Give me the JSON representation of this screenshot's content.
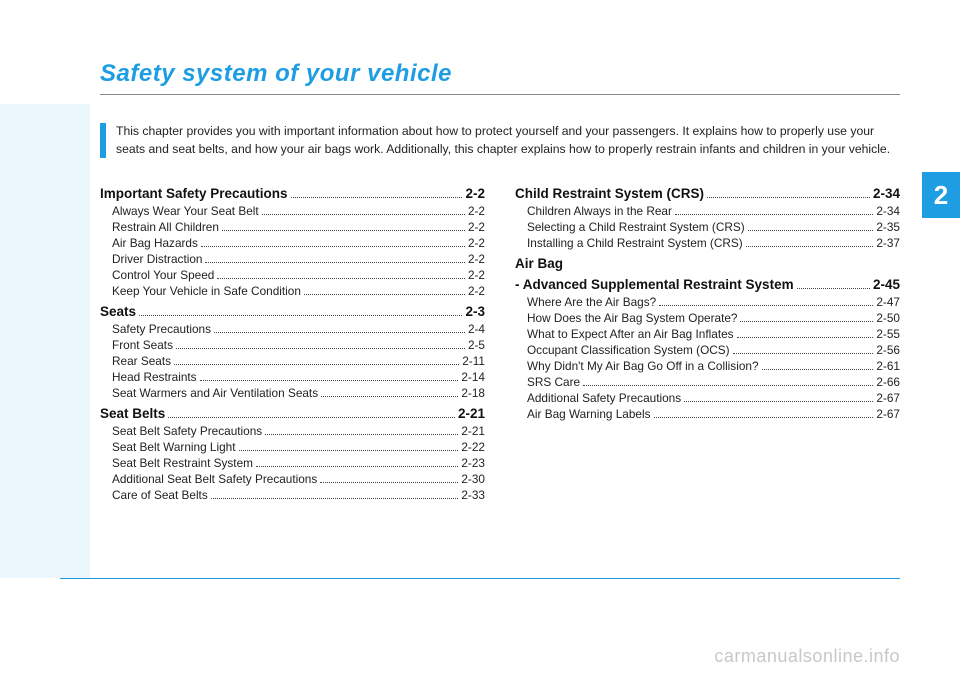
{
  "title": "Safety system of your vehicle",
  "chapter_number": "2",
  "intro": "This chapter provides you with important information about how to protect yourself and your passengers. It explains how to properly use your seats and seat belts, and how your air bags work. Additionally, this chapter explains how to properly restrain infants and children in your vehicle.",
  "watermark": "carmanualsonline.info",
  "colors": {
    "accent": "#1e9de3",
    "left_band": "#eaf5fc",
    "text": "#222222",
    "watermark": "#c8c8c8",
    "divider": "#888888"
  },
  "typography": {
    "title_fontsize": 24,
    "section_fontsize": 13.5,
    "sub_fontsize": 11.8,
    "intro_fontsize": 12.2,
    "chapter_fontsize": 26,
    "watermark_fontsize": 18
  },
  "left_column": [
    {
      "type": "section",
      "label": "Important Safety Precautions",
      "page": "2-2"
    },
    {
      "type": "sub",
      "label": "Always Wear Your Seat Belt",
      "page": "2-2"
    },
    {
      "type": "sub",
      "label": "Restrain All Children",
      "page": "2-2"
    },
    {
      "type": "sub",
      "label": "Air Bag Hazards",
      "page": "2-2"
    },
    {
      "type": "sub",
      "label": "Driver Distraction",
      "page": "2-2"
    },
    {
      "type": "sub",
      "label": "Control Your Speed",
      "page": "2-2"
    },
    {
      "type": "sub",
      "label": "Keep Your Vehicle in Safe Condition",
      "page": "2-2"
    },
    {
      "type": "section",
      "label": "Seats",
      "page": "2-3"
    },
    {
      "type": "sub",
      "label": "Safety Precautions",
      "page": "2-4"
    },
    {
      "type": "sub",
      "label": "Front Seats",
      "page": "2-5"
    },
    {
      "type": "sub",
      "label": "Rear Seats",
      "page": "2-11"
    },
    {
      "type": "sub",
      "label": "Head Restraints",
      "page": "2-14"
    },
    {
      "type": "sub",
      "label": "Seat Warmers and Air Ventilation Seats",
      "page": "2-18"
    },
    {
      "type": "section",
      "label": "Seat Belts",
      "page": "2-21"
    },
    {
      "type": "sub",
      "label": "Seat Belt Safety Precautions",
      "page": "2-21"
    },
    {
      "type": "sub",
      "label": "Seat Belt Warning Light",
      "page": "2-22"
    },
    {
      "type": "sub",
      "label": "Seat Belt Restraint System",
      "page": "2-23"
    },
    {
      "type": "sub",
      "label": "Additional Seat Belt Safety Precautions",
      "page": "2-30"
    },
    {
      "type": "sub",
      "label": "Care of Seat Belts",
      "page": "2-33"
    }
  ],
  "right_column": [
    {
      "type": "section",
      "label": "Child Restraint System (CRS)",
      "page": "2-34"
    },
    {
      "type": "sub",
      "label": "Children Always in the Rear",
      "page": "2-34"
    },
    {
      "type": "sub",
      "label": "Selecting a Child Restraint System (CRS)",
      "page": "2-35"
    },
    {
      "type": "sub",
      "label": "Installing a Child Restraint System (CRS)",
      "page": "2-37"
    },
    {
      "type": "section_only",
      "label": "Air Bag"
    },
    {
      "type": "section",
      "label": "- Advanced Supplemental Restraint System",
      "page": "2-45"
    },
    {
      "type": "sub",
      "label": "Where Are the Air Bags?",
      "page": "2-47"
    },
    {
      "type": "sub",
      "label": "How Does the Air Bag System Operate?",
      "page": "2-50"
    },
    {
      "type": "sub",
      "label": "What to Expect After an Air Bag Inflates",
      "page": "2-55"
    },
    {
      "type": "sub",
      "label": "Occupant Classification System (OCS)",
      "page": "2-56"
    },
    {
      "type": "sub",
      "label": "Why Didn't My Air Bag Go Off in a Collision?",
      "page": "2-61"
    },
    {
      "type": "sub",
      "label": "SRS Care",
      "page": "2-66"
    },
    {
      "type": "sub",
      "label": "Additional Safety Precautions",
      "page": "2-67"
    },
    {
      "type": "sub",
      "label": "Air Bag Warning Labels",
      "page": "2-67"
    }
  ]
}
